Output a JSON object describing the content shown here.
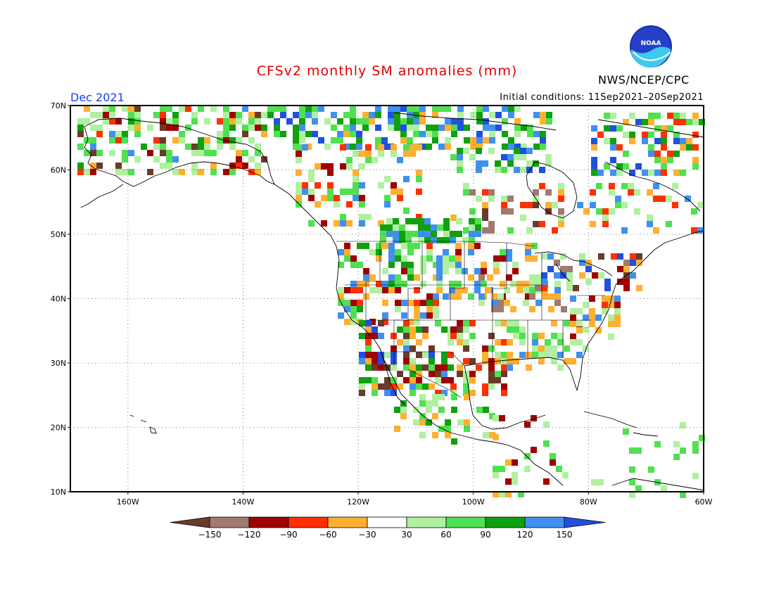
{
  "title": "CFSv2 monthly SM anomalies (mm)",
  "agency": "NWS/NCEP/CPC",
  "logo_text": "NOAA",
  "month_label": "Dec 2021",
  "initial_conditions": "Initial conditions: 11Sep2021–20Sep2021",
  "map": {
    "lon_range": [
      -170,
      -60
    ],
    "lat_range": [
      10,
      70
    ],
    "lat_ticks": [
      {
        "value": 70,
        "label": "70N"
      },
      {
        "value": 60,
        "label": "60N"
      },
      {
        "value": 50,
        "label": "50N"
      },
      {
        "value": 40,
        "label": "40N"
      },
      {
        "value": 30,
        "label": "30N"
      },
      {
        "value": 20,
        "label": "20N"
      },
      {
        "value": 10,
        "label": "10N"
      }
    ],
    "lon_ticks": [
      {
        "value": -160,
        "label": "160W"
      },
      {
        "value": -140,
        "label": "140W"
      },
      {
        "value": -120,
        "label": "120W"
      },
      {
        "value": -100,
        "label": "100W"
      },
      {
        "value": -80,
        "label": "80W"
      },
      {
        "value": -60,
        "label": "60W"
      }
    ],
    "gridlines": "dotted"
  },
  "colorbar": {
    "labels": [
      "−150",
      "−120",
      "−90",
      "−60",
      "−30",
      "30",
      "60",
      "90",
      "120",
      "150"
    ],
    "colors": [
      "#6b3a2a",
      "#a07a6e",
      "#a00000",
      "#ff3000",
      "#ffb030",
      "#ffffff",
      "#b0f0a0",
      "#50e050",
      "#10a010",
      "#4090f0",
      "#2050e0"
    ]
  }
}
